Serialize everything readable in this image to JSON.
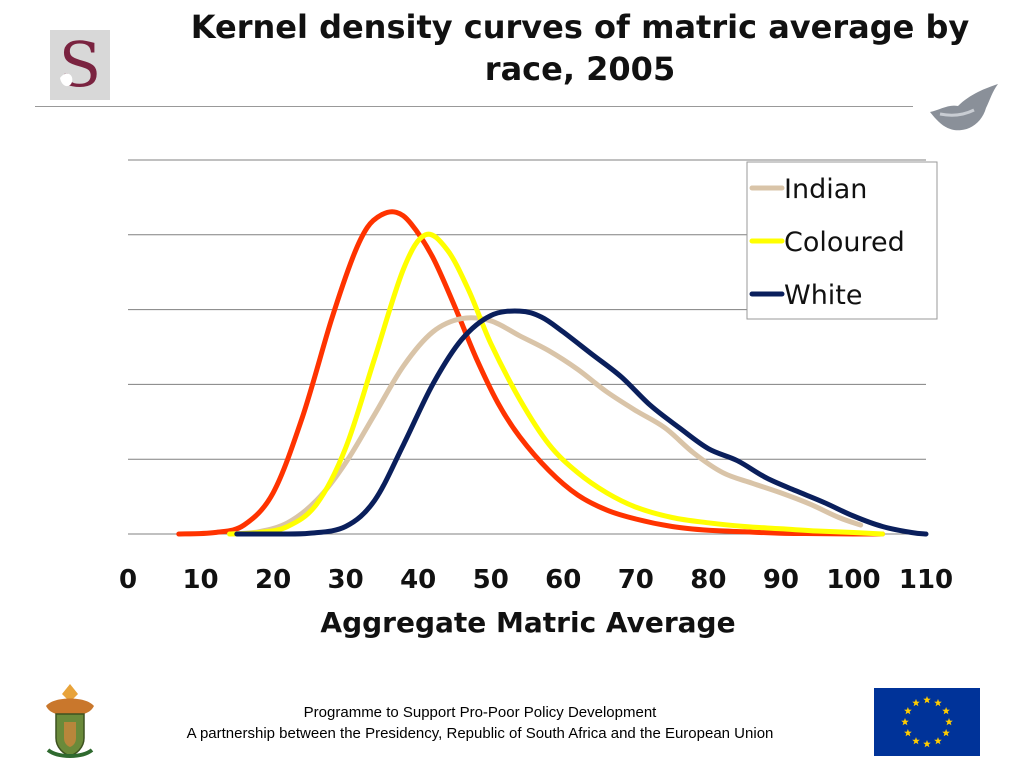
{
  "colors": {
    "rule": "#999999",
    "grid": "#808080",
    "eu_blue": "#003399",
    "eu_star": "#ffcc00",
    "s_logo": "#7a2340"
  },
  "logos": {
    "top_left": "stellenbosch-s-icon",
    "top_right": "fish-icon",
    "bottom_left": "coat-of-arms-icon",
    "bottom_right": "eu-flag-icon"
  },
  "footer": {
    "line1": "Programme to Support Pro-Poor Policy Development",
    "line2": "A partnership between the Presidency, Republic of South Africa and the European Union"
  },
  "chart_data": {
    "type": "line",
    "title": "Kernel density curves of matric average by race, 2005",
    "xlabel": "Aggregate Matric Average",
    "ylabel": "",
    "xlim": [
      0,
      110
    ],
    "ylim": [
      0,
      5
    ],
    "xticks": [
      "0",
      "10",
      "20",
      "30",
      "40",
      "50",
      "60",
      "70",
      "80",
      "90",
      "100",
      "110"
    ],
    "grid": true,
    "legend": "top-right",
    "series": [
      {
        "name": "",
        "color": "#ff3300",
        "x": [
          7,
          12,
          16,
          20,
          24,
          28,
          31,
          33,
          35,
          37,
          39,
          42,
          45,
          48,
          51,
          54,
          58,
          62,
          66,
          70,
          75,
          80,
          85,
          90,
          95,
          100,
          104
        ],
        "y": [
          0,
          0.02,
          0.12,
          0.55,
          1.55,
          2.85,
          3.7,
          4.1,
          4.27,
          4.3,
          4.15,
          3.7,
          3.05,
          2.35,
          1.75,
          1.3,
          0.85,
          0.52,
          0.32,
          0.2,
          0.1,
          0.05,
          0.03,
          0.01,
          0.005,
          0,
          0
        ]
      },
      {
        "name": "Indian",
        "color": "#d9c4a8",
        "x": [
          14,
          18,
          22,
          26,
          30,
          34,
          38,
          42,
          46,
          50,
          54,
          58,
          62,
          66,
          70,
          74,
          78,
          82,
          86,
          90,
          94,
          98,
          101
        ],
        "y": [
          0,
          0.03,
          0.15,
          0.45,
          0.95,
          1.6,
          2.25,
          2.7,
          2.88,
          2.85,
          2.65,
          2.45,
          2.2,
          1.9,
          1.65,
          1.42,
          1.08,
          0.82,
          0.68,
          0.55,
          0.4,
          0.22,
          0.12
        ]
      },
      {
        "name": "Coloured",
        "color": "#ffff00",
        "x": [
          14,
          18,
          22,
          26,
          30,
          34,
          38,
          41,
          44,
          47,
          50,
          54,
          58,
          62,
          66,
          70,
          75,
          80,
          85,
          90,
          95,
          100,
          104
        ],
        "y": [
          0,
          0.02,
          0.1,
          0.4,
          1.15,
          2.35,
          3.55,
          4.0,
          3.8,
          3.25,
          2.55,
          1.8,
          1.2,
          0.82,
          0.55,
          0.36,
          0.22,
          0.15,
          0.1,
          0.07,
          0.04,
          0.02,
          0
        ]
      },
      {
        "name": "White",
        "color": "#0a1f5c",
        "x": [
          15,
          20,
          25,
          30,
          34,
          38,
          42,
          46,
          50,
          54,
          57,
          60,
          64,
          68,
          72,
          76,
          80,
          84,
          88,
          92,
          96,
          100,
          104,
          108,
          110
        ],
        "y": [
          0,
          0,
          0.01,
          0.1,
          0.45,
          1.2,
          2.0,
          2.6,
          2.92,
          2.98,
          2.9,
          2.7,
          2.4,
          2.1,
          1.72,
          1.42,
          1.14,
          0.98,
          0.75,
          0.58,
          0.42,
          0.24,
          0.1,
          0.02,
          0
        ]
      }
    ]
  }
}
